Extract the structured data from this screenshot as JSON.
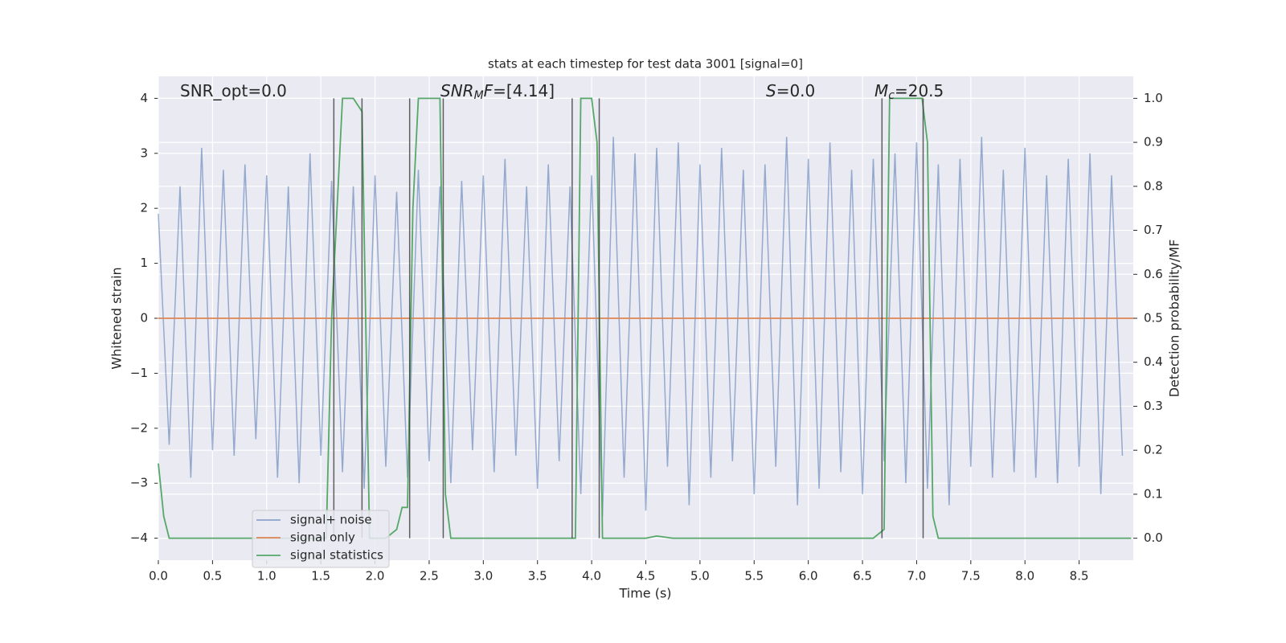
{
  "chart_data": {
    "type": "line",
    "title": "stats at each timestep for test data 3001 [signal=0]",
    "x_label": "Time (s)",
    "y_label": "Whitened strain",
    "y2_label": "Detection probability/MF",
    "xlim": [
      0,
      9
    ],
    "ylim": [
      -4.4,
      4.4
    ],
    "y2lim": [
      -0.05,
      1.05
    ],
    "grid": true,
    "legend": "lower left",
    "xticks": [
      {
        "value": 0,
        "label": "0.0"
      },
      0.5,
      {
        "value": 1,
        "label": "1.0"
      },
      1.5,
      {
        "value": 2,
        "label": "2.0"
      },
      2.5,
      {
        "value": 3,
        "label": "3.0"
      },
      3.5,
      {
        "value": 4,
        "label": "4.0"
      },
      4.5,
      {
        "value": 5,
        "label": "5.0"
      },
      5.5,
      {
        "value": 6,
        "label": "6.0"
      },
      6.5,
      {
        "value": 7,
        "label": "7.0"
      },
      7.5,
      {
        "value": 8,
        "label": "8.0"
      },
      8.5
    ],
    "yticks": [
      {
        "value": -4,
        "label": "−4"
      },
      {
        "value": -3,
        "label": "−3"
      },
      {
        "value": -2,
        "label": "−2"
      },
      {
        "value": -1,
        "label": "−1"
      },
      0,
      1,
      2,
      3,
      4
    ],
    "y2ticks": [
      {
        "value": 0,
        "label": "0.0"
      },
      0.1,
      0.2,
      0.3,
      0.4,
      0.5,
      0.6,
      0.7,
      0.8,
      0.9,
      {
        "value": 1,
        "label": "1.0"
      }
    ],
    "series": [
      {
        "name": "signal+ noise",
        "color": "#4c72b0",
        "x": [
          0,
          0.1,
          0.2,
          0.3,
          0.4,
          0.5,
          0.6,
          0.7,
          0.8,
          0.9,
          1,
          1.1,
          1.2,
          1.3,
          1.4,
          1.5,
          1.6,
          1.7,
          1.8,
          1.9,
          2,
          2.1,
          2.2,
          2.3,
          2.4,
          2.5,
          2.6,
          2.7,
          2.8,
          2.9,
          3,
          3.1,
          3.2,
          3.3,
          3.4,
          3.5,
          3.6,
          3.7,
          3.8,
          3.9,
          4,
          4.1,
          4.2,
          4.3,
          4.4,
          4.5,
          4.6,
          4.7,
          4.8,
          4.9,
          5,
          5.1,
          5.2,
          5.3,
          5.4,
          5.5,
          5.6,
          5.7,
          5.8,
          5.9,
          6,
          6.1,
          6.2,
          6.3,
          6.4,
          6.5,
          6.6,
          6.7,
          6.8,
          6.9,
          7,
          7.1,
          7.2,
          7.3,
          7.4,
          7.5,
          7.6,
          7.7,
          7.8,
          7.9,
          8,
          8.1,
          8.2,
          8.3,
          8.4,
          8.5,
          8.6,
          8.7,
          8.8,
          8.9
        ],
        "values": [
          1.9,
          -2.3,
          2.4,
          -2.9,
          3.1,
          -2.4,
          2.7,
          -2.5,
          2.8,
          -2.2,
          2.6,
          -2.9,
          2.4,
          -3.0,
          3.0,
          -2.5,
          2.5,
          -2.8,
          2.4,
          -3.1,
          2.6,
          -2.7,
          2.3,
          -2.9,
          2.7,
          -2.6,
          2.4,
          -3.0,
          2.5,
          -2.4,
          2.6,
          -2.8,
          2.9,
          -2.5,
          2.4,
          -3.1,
          2.8,
          -2.6,
          2.4,
          -3.2,
          2.6,
          -3.6,
          3.3,
          -2.9,
          3.0,
          -3.5,
          3.1,
          -2.7,
          3.2,
          -3.4,
          2.8,
          -2.9,
          3.1,
          -2.6,
          2.7,
          -3.2,
          2.8,
          -2.7,
          3.3,
          -3.4,
          2.9,
          -3.1,
          3.2,
          -2.8,
          2.7,
          -3.2,
          2.9,
          -2.6,
          3.0,
          -3.0,
          3.2,
          -3.1,
          2.8,
          -3.4,
          2.9,
          -2.7,
          3.3,
          -2.9,
          2.7,
          -2.8,
          3.1,
          -2.9,
          2.6,
          -3.0,
          2.9,
          -2.7,
          3.0,
          -3.2,
          2.6,
          -2.5
        ]
      },
      {
        "name": "signal only",
        "color": "#dd8452",
        "x": [
          0,
          9
        ],
        "values": [
          0,
          0
        ]
      },
      {
        "name": "signal statistics",
        "color": "#55a868",
        "axis": "y2",
        "x": [
          0,
          0.05,
          0.1,
          0.15,
          1.55,
          1.6,
          1.7,
          1.8,
          1.88,
          1.95,
          2.0,
          2.1,
          2.2,
          2.25,
          2.3,
          2.35,
          2.4,
          2.6,
          2.65,
          2.7,
          2.75,
          3.8,
          3.85,
          3.9,
          4.0,
          4.05,
          4.1,
          4.15,
          4.5,
          4.6,
          4.75,
          6.6,
          6.7,
          6.75,
          7.05,
          7.1,
          7.15,
          7.2,
          8.98
        ],
        "values": [
          0.17,
          0.05,
          0.0,
          0.0,
          0.0,
          0.5,
          1.0,
          1.0,
          0.97,
          0.0,
          0.0,
          0.0,
          0.02,
          0.07,
          0.07,
          0.75,
          1.0,
          1.0,
          0.1,
          0.0,
          0.0,
          0.0,
          0.0,
          1.0,
          1.0,
          0.9,
          0.0,
          0.0,
          0.0,
          0.005,
          0.0,
          0.0,
          0.02,
          1.0,
          1.0,
          0.9,
          0.05,
          0.0,
          0.0
        ]
      }
    ],
    "vlines": [
      1.62,
      1.88,
      2.32,
      2.63,
      3.82,
      4.07,
      6.68,
      7.06
    ],
    "vline_range": [
      -4,
      4
    ],
    "annotations": [
      [
        {
          "text": "SNR_opt=0.0"
        }
      ],
      [
        {
          "text": "SNR",
          "style": "italic"
        },
        {
          "text": "M",
          "style": "sub"
        },
        {
          "text": "F",
          "style": "italic"
        },
        {
          "text": "=[4.14]"
        }
      ],
      [
        {
          "text": "S",
          "style": "italic"
        },
        {
          "text": "=0.0"
        }
      ],
      [
        {
          "text": "M",
          "style": "italic"
        },
        {
          "text": "c",
          "style": "sub"
        },
        {
          "text": "=20.5"
        }
      ]
    ]
  }
}
